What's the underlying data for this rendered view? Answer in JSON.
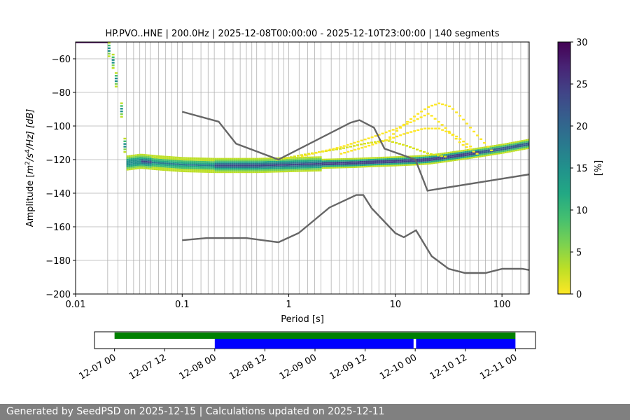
{
  "chart_data": [
    {
      "type": "heatmap",
      "title": "HP.PVO..HNE | 200.0Hz | 2025-12-08T00:00:00 - 2025-12-10T23:00:00 | 140 segments",
      "xlabel": "Period [s]",
      "ylabel": "Amplitude [m²/s⁴/Hz] [dB]",
      "ylabel_parts": {
        "prefix": "Amplitude [",
        "m": "m",
        "two": "2",
        "s": "/s",
        "four": "4",
        "hz": "/Hz] [dB]"
      },
      "xscale": "log",
      "xlim": [
        0.01,
        180
      ],
      "ylim": [
        -200,
        -50
      ],
      "x_ticks": [
        {
          "value": 0.01,
          "label": "0.01"
        },
        {
          "value": 0.1,
          "label": "0.1"
        },
        {
          "value": 1,
          "label": "1"
        },
        {
          "value": 10,
          "label": "10"
        },
        {
          "value": 100,
          "label": "100"
        }
      ],
      "y_ticks": [
        {
          "value": -60,
          "label": "−60"
        },
        {
          "value": -80,
          "label": "−80"
        },
        {
          "value": -100,
          "label": "−100"
        },
        {
          "value": -120,
          "label": "−120"
        },
        {
          "value": -140,
          "label": "−140"
        },
        {
          "value": -160,
          "label": "−160"
        },
        {
          "value": -180,
          "label": "−180"
        },
        {
          "value": -200,
          "label": "−200"
        }
      ],
      "grid_periods": [
        0.02,
        0.025,
        0.03,
        0.035,
        0.04,
        0.045,
        0.05,
        0.06,
        0.07,
        0.08,
        0.09,
        0.1,
        0.125,
        0.15,
        0.175,
        0.2,
        0.25,
        0.3,
        0.35,
        0.4,
        0.45,
        0.5,
        0.6,
        0.7,
        0.8,
        0.9,
        1.0,
        1.25,
        1.5,
        1.75,
        2.0,
        2.5,
        3.0,
        3.5,
        4.0,
        4.5,
        5.0,
        6.0,
        7.0,
        8.0,
        9.0,
        10.0,
        12.5,
        15.0,
        17.5,
        20,
        25,
        30,
        35,
        40,
        45,
        50,
        60,
        70,
        80,
        90,
        100,
        125,
        150,
        175
      ],
      "noise_models": [
        {
          "name": "NHNM",
          "points": [
            [
              0.1,
              -91.5
            ],
            [
              0.22,
              -97.4
            ],
            [
              0.32,
              -110.5
            ],
            [
              0.8,
              -120.0
            ],
            [
              3.8,
              -98.0
            ],
            [
              4.6,
              -96.5
            ],
            [
              6.3,
              -101.0
            ],
            [
              7.9,
              -113.5
            ],
            [
              15.4,
              -120.0
            ],
            [
              20.0,
              -138.5
            ],
            [
              180,
              -128.8
            ]
          ]
        },
        {
          "name": "NLNM",
          "points": [
            [
              0.1,
              -168.0
            ],
            [
              0.17,
              -166.7
            ],
            [
              0.4,
              -166.7
            ],
            [
              0.8,
              -169.2
            ],
            [
              1.24,
              -163.7
            ],
            [
              2.4,
              -148.6
            ],
            [
              4.3,
              -141.1
            ],
            [
              5.0,
              -141.1
            ],
            [
              6.0,
              -149.0
            ],
            [
              10.0,
              -163.8
            ],
            [
              12.0,
              -166.2
            ],
            [
              15.6,
              -162.1
            ],
            [
              21.9,
              -177.5
            ],
            [
              31.6,
              -185.0
            ],
            [
              45.0,
              -187.5
            ],
            [
              70.0,
              -187.5
            ],
            [
              101.0,
              -185.0
            ],
            [
              154.0,
              -185.0
            ],
            [
              180.0,
              -185.7
            ]
          ]
        }
      ],
      "psd_band": {
        "periods": [
          0.03,
          0.04,
          0.06,
          0.1,
          0.2,
          0.5,
          1,
          2,
          4,
          6,
          10,
          15,
          20,
          30,
          50,
          100,
          180
        ],
        "median_db": [
          -121.5,
          -120.5,
          -121.5,
          -122.5,
          -123.0,
          -123.0,
          -122.5,
          -122.0,
          -121.5,
          -121.0,
          -120.5,
          -120.0,
          -119.5,
          -118.0,
          -116.0,
          -113.0,
          -110.0
        ]
      },
      "psd_upper_arcs": [
        {
          "periods": [
            0.7,
            1.5,
            3,
            5,
            8,
            12,
            20,
            30
          ],
          "db": [
            -120,
            -116,
            -113,
            -110,
            -108,
            -111,
            -116,
            -118
          ]
        },
        {
          "periods": [
            1.2,
            3,
            6,
            10,
            15,
            20,
            28,
            40,
            60
          ],
          "db": [
            -118,
            -112,
            -106,
            -101,
            -96,
            -92,
            -100,
            -110,
            -117
          ]
        },
        {
          "periods": [
            8,
            12,
            16,
            20,
            25,
            32,
            40,
            55,
            80
          ],
          "db": [
            -108,
            -98,
            -92,
            -88,
            -86,
            -88,
            -94,
            -104,
            -115
          ]
        },
        {
          "periods": [
            3,
            5,
            8,
            12,
            18,
            25,
            35,
            50
          ],
          "db": [
            -116,
            -112,
            -108,
            -104,
            -101,
            -101,
            -105,
            -112
          ]
        }
      ],
      "psd_early": {
        "periods": [
          0.0206,
          0.0225,
          0.024,
          0.027,
          0.029
        ],
        "db": [
          -50,
          -57,
          -68,
          -86,
          -107
        ]
      },
      "colorbar": {
        "label": "[%]",
        "min": 0,
        "max": 30,
        "ticks": [
          {
            "value": 0,
            "label": "0"
          },
          {
            "value": 5,
            "label": "5"
          },
          {
            "value": 10,
            "label": "10"
          },
          {
            "value": 15,
            "label": "15"
          },
          {
            "value": 20,
            "label": "20"
          },
          {
            "value": 25,
            "label": "25"
          },
          {
            "value": 30,
            "label": "30"
          }
        ]
      }
    },
    {
      "type": "timeline",
      "x_ticks": [
        {
          "label": "12-07 00",
          "hours": 0
        },
        {
          "label": "12-07 12",
          "hours": 12
        },
        {
          "label": "12-08 00",
          "hours": 24
        },
        {
          "label": "12-08 12",
          "hours": 36
        },
        {
          "label": "12-09 00",
          "hours": 48
        },
        {
          "label": "12-09 12",
          "hours": 60
        },
        {
          "label": "12-10 00",
          "hours": 72
        },
        {
          "label": "12-10 12",
          "hours": 84
        },
        {
          "label": "12-11 00",
          "hours": 96
        }
      ],
      "xlim_hours": [
        -4.8,
        100.8
      ],
      "available_data": [
        {
          "start": 0,
          "end": 96
        }
      ],
      "used_segments": [
        {
          "start": 24,
          "end": 71.6
        },
        {
          "start": 72.2,
          "end": 96
        }
      ],
      "colors": {
        "available": "#008000",
        "used": "#0000ff"
      }
    }
  ],
  "footer": {
    "text": "Generated by SeedPSD on 2025-12-15 | Calculations updated on 2025-12-11"
  }
}
